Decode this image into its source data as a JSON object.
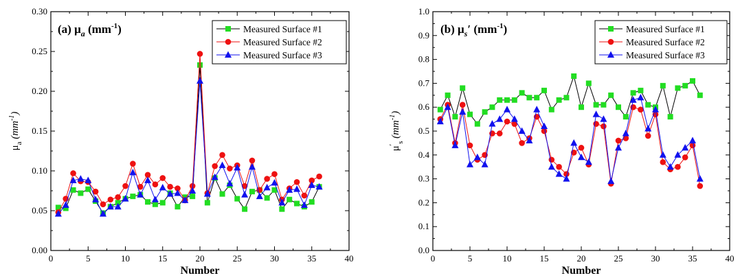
{
  "chart_data": [
    {
      "type": "line",
      "title": "(a) μa (mm-1)",
      "title_parts": {
        "label": "(a) ",
        "symbol": "μ",
        "subscript": "a",
        "unit": " (mm",
        "unit_sup": "-1",
        "unit_close": ")"
      },
      "xlabel": "Number",
      "ylabel_parts": {
        "symbol": "μ",
        "subscript": "a",
        "unit": "(mm",
        "unit_sup": "-1",
        "unit_close": ")"
      },
      "xlim": [
        0,
        40
      ],
      "ylim": [
        0.0,
        0.3
      ],
      "xticks": [
        "0",
        "5",
        "10",
        "15",
        "20",
        "25",
        "30",
        "35",
        "40"
      ],
      "yticks": [
        "0.00",
        "0.05",
        "0.10",
        "0.15",
        "0.20",
        "0.25",
        "0.30"
      ],
      "grid": false,
      "legend_position": "top-right",
      "x": [
        1,
        2,
        3,
        4,
        5,
        6,
        7,
        8,
        9,
        10,
        11,
        12,
        13,
        14,
        15,
        16,
        17,
        18,
        19,
        20,
        21,
        22,
        23,
        24,
        25,
        26,
        27,
        28,
        29,
        30,
        31,
        32,
        33,
        34,
        35,
        36
      ],
      "series": [
        {
          "name": "Measured Surface #1",
          "color": "#22dd22",
          "marker": "square",
          "values": [
            0.054,
            0.053,
            0.076,
            0.072,
            0.077,
            0.062,
            0.047,
            0.055,
            0.06,
            0.065,
            0.068,
            0.07,
            0.061,
            0.058,
            0.06,
            0.072,
            0.055,
            0.067,
            0.068,
            0.233,
            0.06,
            0.091,
            0.071,
            0.082,
            0.065,
            0.052,
            0.074,
            0.076,
            0.066,
            0.076,
            0.052,
            0.064,
            0.059,
            0.055,
            0.061,
            0.08
          ]
        },
        {
          "name": "Measured Surface #2",
          "color": "#ee1111",
          "marker": "circle",
          "values": [
            0.048,
            0.065,
            0.097,
            0.087,
            0.086,
            0.074,
            0.058,
            0.064,
            0.067,
            0.081,
            0.109,
            0.08,
            0.095,
            0.083,
            0.091,
            0.08,
            0.078,
            0.063,
            0.081,
            0.247,
            0.072,
            0.106,
            0.12,
            0.103,
            0.107,
            0.081,
            0.113,
            0.076,
            0.09,
            0.096,
            0.064,
            0.078,
            0.086,
            0.069,
            0.088,
            0.093
          ]
        },
        {
          "name": "Measured Surface #3",
          "color": "#1111ee",
          "marker": "triangle",
          "values": [
            0.046,
            0.057,
            0.088,
            0.09,
            0.088,
            0.064,
            0.046,
            0.055,
            0.055,
            0.065,
            0.098,
            0.07,
            0.088,
            0.064,
            0.079,
            0.071,
            0.072,
            0.063,
            0.075,
            0.213,
            0.071,
            0.092,
            0.107,
            0.084,
            0.104,
            0.07,
            0.105,
            0.068,
            0.079,
            0.085,
            0.06,
            0.076,
            0.077,
            0.057,
            0.082,
            0.08
          ]
        }
      ]
    },
    {
      "type": "line",
      "title": "(b) μs′ (mm-1)",
      "title_parts": {
        "label": "(b) ",
        "symbol": "μ",
        "subscript": "s",
        "prime": "′",
        "unit": " (mm",
        "unit_sup": "-1",
        "unit_close": ")"
      },
      "xlabel": "Number",
      "ylabel_parts": {
        "symbol": "μ",
        "subscript": "s",
        "prime": "′",
        "unit": "(mm",
        "unit_sup": "-1",
        "unit_close": ")"
      },
      "xlim": [
        0,
        40
      ],
      "ylim": [
        0.0,
        1.0
      ],
      "xticks": [
        "0",
        "5",
        "10",
        "15",
        "20",
        "25",
        "30",
        "35",
        "40"
      ],
      "yticks": [
        "0.0",
        "0.1",
        "0.2",
        "0.3",
        "0.4",
        "0.5",
        "0.6",
        "0.7",
        "0.8",
        "0.9",
        "1.0"
      ],
      "grid": false,
      "legend_position": "top-right",
      "x": [
        1,
        2,
        3,
        4,
        5,
        6,
        7,
        8,
        9,
        10,
        11,
        12,
        13,
        14,
        15,
        16,
        17,
        18,
        19,
        20,
        21,
        22,
        23,
        24,
        25,
        26,
        27,
        28,
        29,
        30,
        31,
        32,
        33,
        34,
        35,
        36
      ],
      "series": [
        {
          "name": "Measured Surface #1",
          "color": "#22dd22",
          "marker": "square",
          "values": [
            0.59,
            0.65,
            0.56,
            0.68,
            0.57,
            0.53,
            0.58,
            0.6,
            0.63,
            0.63,
            0.63,
            0.66,
            0.64,
            0.64,
            0.67,
            0.59,
            0.63,
            0.64,
            0.73,
            0.6,
            0.7,
            0.61,
            0.61,
            0.65,
            0.6,
            0.56,
            0.66,
            0.67,
            0.61,
            0.6,
            0.69,
            0.56,
            0.68,
            0.69,
            0.71,
            0.65
          ]
        },
        {
          "name": "Measured Surface #2",
          "color": "#ee1111",
          "marker": "circle",
          "values": [
            0.55,
            0.61,
            0.45,
            0.61,
            0.44,
            0.38,
            0.4,
            0.49,
            0.49,
            0.54,
            0.53,
            0.45,
            0.47,
            0.56,
            0.5,
            0.38,
            0.35,
            0.32,
            0.41,
            0.43,
            0.36,
            0.53,
            0.52,
            0.28,
            0.46,
            0.47,
            0.6,
            0.59,
            0.48,
            0.57,
            0.37,
            0.34,
            0.35,
            0.39,
            0.44,
            0.27
          ]
        },
        {
          "name": "Measured Surface #3",
          "color": "#1111ee",
          "marker": "triangle",
          "values": [
            0.54,
            0.6,
            0.44,
            0.58,
            0.36,
            0.39,
            0.36,
            0.53,
            0.55,
            0.59,
            0.55,
            0.5,
            0.46,
            0.59,
            0.52,
            0.35,
            0.32,
            0.3,
            0.45,
            0.39,
            0.37,
            0.57,
            0.55,
            0.29,
            0.43,
            0.49,
            0.63,
            0.64,
            0.51,
            0.59,
            0.4,
            0.35,
            0.4,
            0.43,
            0.46,
            0.3
          ]
        }
      ]
    }
  ]
}
